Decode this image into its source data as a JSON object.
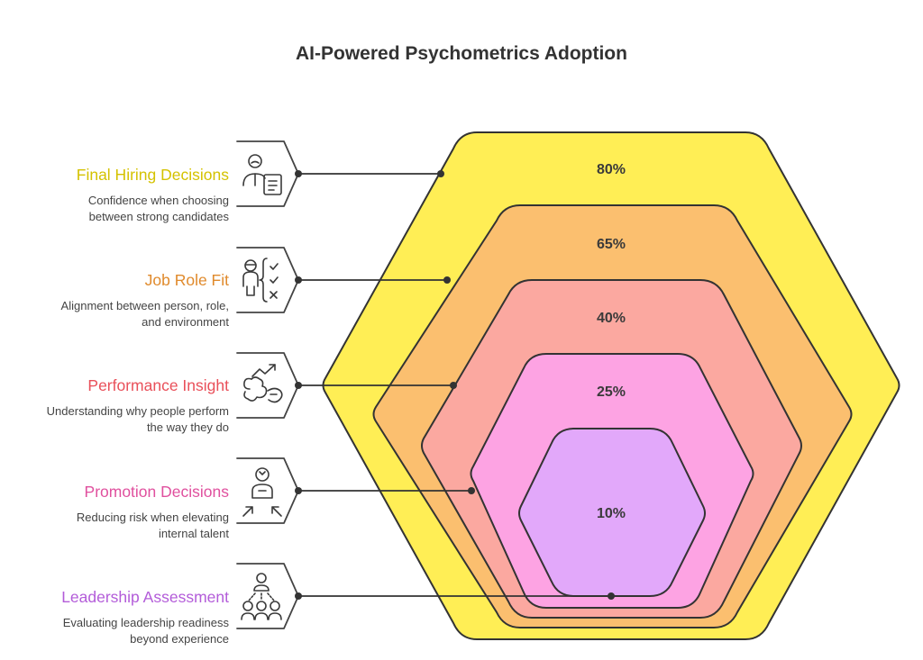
{
  "title": "AI-Powered Psychometrics Adoption",
  "items": [
    {
      "title": "Final Hiring Decisions",
      "desc1": "Confidence when choosing",
      "desc2": "between strong candidates",
      "value": 80,
      "value_label": "80%",
      "color": "#FFE600",
      "fill": "#FFEE55",
      "text_color": "#D4C200",
      "icon": "candidate-document-icon"
    },
    {
      "title": "Job Role Fit",
      "desc1": "Alignment between person, role,",
      "desc2": "and environment",
      "value": 65,
      "value_label": "65%",
      "color": "#F9A53A",
      "fill": "#FBBF6F",
      "text_color": "#E08A2C",
      "icon": "person-checklist-icon"
    },
    {
      "title": "Performance Insight",
      "desc1": "Understanding why people perform",
      "desc2": "the way they do",
      "value": 40,
      "value_label": "40%",
      "color": "#F77B7B",
      "fill": "#FBA8A0",
      "text_color": "#E9505A",
      "icon": "trend-brain-icon"
    },
    {
      "title": "Promotion Decisions",
      "desc1": "Reducing risk when elevating",
      "desc2": "internal talent",
      "value": 25,
      "value_label": "25%",
      "color": "#F590D6",
      "fill": "#FDA3E3",
      "text_color": "#E0509E",
      "icon": "promotion-person-icon"
    },
    {
      "title": "Leadership Assessment",
      "desc1": "Evaluating leadership readiness",
      "desc2": "beyond experience",
      "value": 10,
      "value_label": "10%",
      "color": "#D898F5",
      "fill": "#E2A8FA",
      "text_color": "#B35CD9",
      "icon": "team-leader-icon"
    }
  ]
}
